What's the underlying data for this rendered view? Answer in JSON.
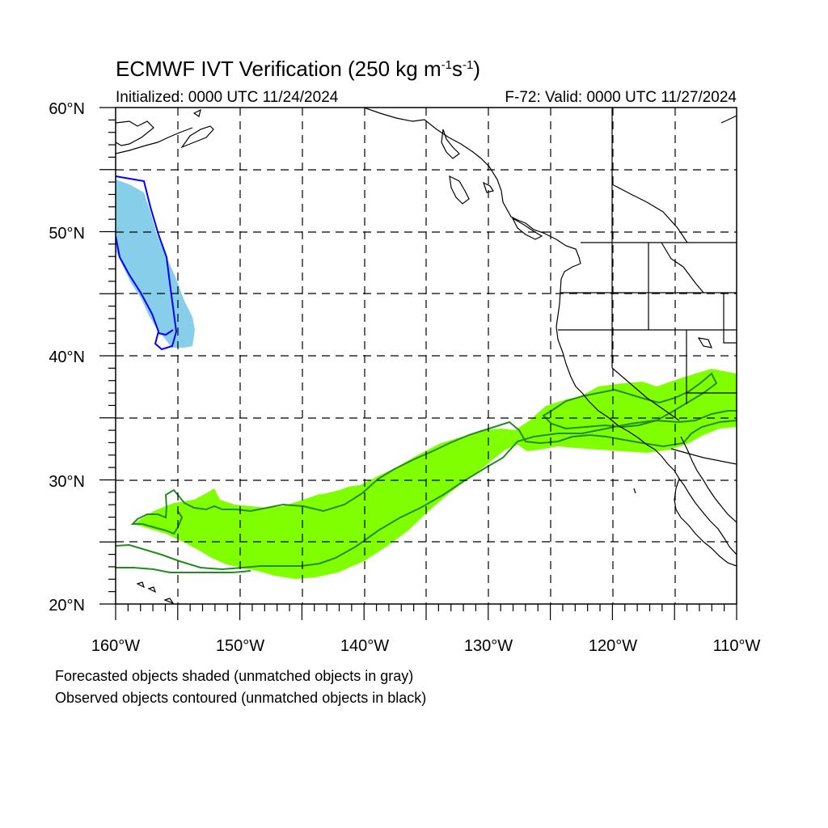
{
  "title": {
    "main_prefix": "ECMWF IVT Verification (250 kg m",
    "exp1": "-1",
    "middle": "s",
    "exp2": "-1",
    "suffix": ")"
  },
  "initialized": "Initialized: 0000 UTC 11/24/2024",
  "valid": "F-72: Valid: 0000 UTC 11/27/2024",
  "lat_labels": [
    "60°N",
    "50°N",
    "40°N",
    "30°N",
    "20°N"
  ],
  "lon_labels": [
    "160°W",
    "150°W",
    "140°W",
    "130°W",
    "120°W",
    "110°W"
  ],
  "notes": {
    "line1": "Forecasted objects shaded (unmatched objects in gray)",
    "line2": "Observed objects contoured (unmatched objects in black)"
  },
  "colors": {
    "object1_shade": "#87CEEB",
    "object1_contour": "#0000FF",
    "object2_shade": "#7FFF00",
    "object2_contour": "#228B22",
    "grid": "#000000"
  },
  "map": {
    "lat_range": [
      20,
      60
    ],
    "lon_range": [
      -160,
      -110
    ],
    "projection": "cylindrical equidistant"
  }
}
